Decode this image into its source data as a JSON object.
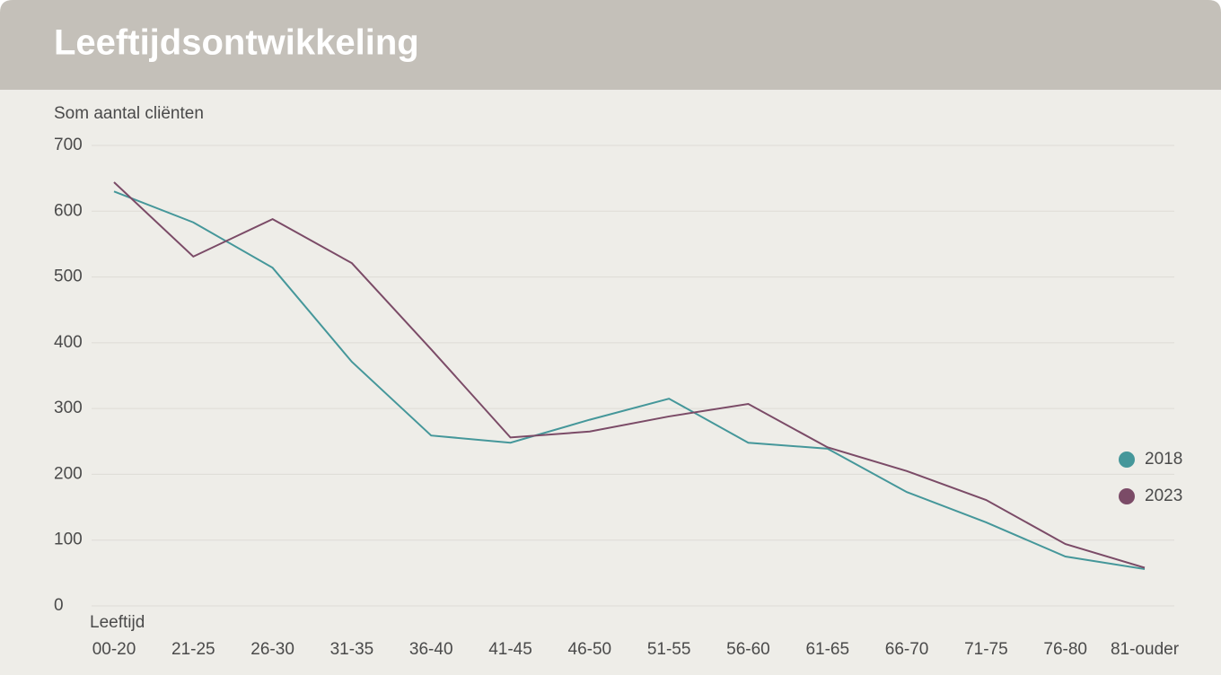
{
  "chart_data": {
    "type": "line",
    "title": "Leeftijdsontwikkeling",
    "y_label": "Som aantal cliënten",
    "x_label": "Leeftijd",
    "categories": [
      "00-20",
      "21-25",
      "26-30",
      "31-35",
      "36-40",
      "41-45",
      "46-50",
      "51-55",
      "56-60",
      "61-65",
      "66-70",
      "71-75",
      "76-80",
      "81-ouder"
    ],
    "series": [
      {
        "name": "2018",
        "color": "#45979a",
        "values": [
          630,
          583,
          514,
          371,
          259,
          248,
          283,
          315,
          248,
          239,
          173,
          127,
          75,
          56
        ]
      },
      {
        "name": "2023",
        "color": "#7b4b67",
        "values": [
          644,
          531,
          588,
          521,
          390,
          256,
          265,
          288,
          307,
          241,
          205,
          161,
          94,
          58
        ]
      }
    ],
    "ylim": [
      0,
      700
    ],
    "yticks": [
      0,
      100,
      200,
      300,
      400,
      500,
      600,
      700
    ],
    "grid": true,
    "legend": "right"
  }
}
